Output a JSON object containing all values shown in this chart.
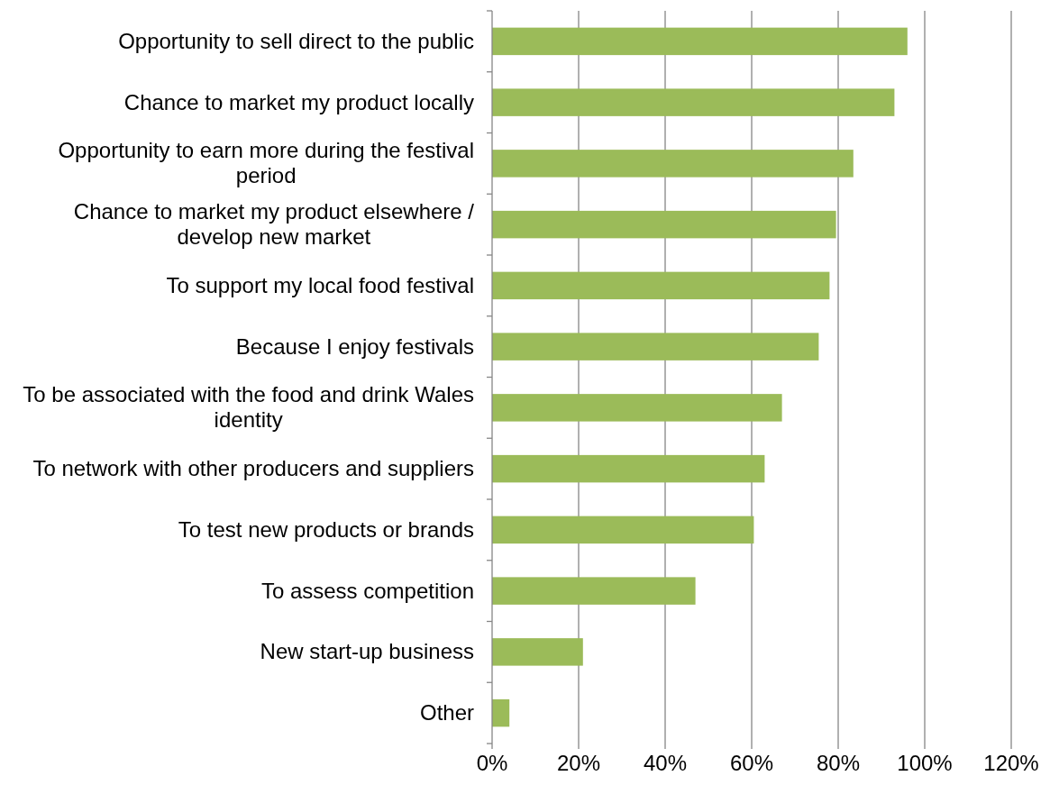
{
  "chart_data": {
    "type": "bar",
    "orientation": "horizontal",
    "categories": [
      "Opportunity to sell direct to the public",
      "Chance to market my product locally",
      "Opportunity to earn more during the festival period",
      "Chance to market my product elsewhere / develop new market",
      "To support my local food festival",
      "Because I enjoy festivals",
      "To be associated with the food and drink Wales identity",
      "To network with other producers and suppliers",
      "To test new products or brands",
      "To assess competition",
      "New start-up business",
      "Other"
    ],
    "values": [
      96,
      93,
      83.5,
      79.5,
      78,
      75.5,
      67,
      63,
      60.5,
      47,
      21,
      4
    ],
    "color": "#9bbb59",
    "xlim": [
      0,
      120
    ],
    "xticks": [
      {
        "value": 0,
        "label": "0%"
      },
      {
        "value": 20,
        "label": "20%"
      },
      {
        "value": 40,
        "label": "40%"
      },
      {
        "value": 60,
        "label": "60%"
      },
      {
        "value": 80,
        "label": "80%"
      },
      {
        "value": 100,
        "label": "100%"
      },
      {
        "value": 120,
        "label": "120%"
      }
    ],
    "grid": "x"
  }
}
